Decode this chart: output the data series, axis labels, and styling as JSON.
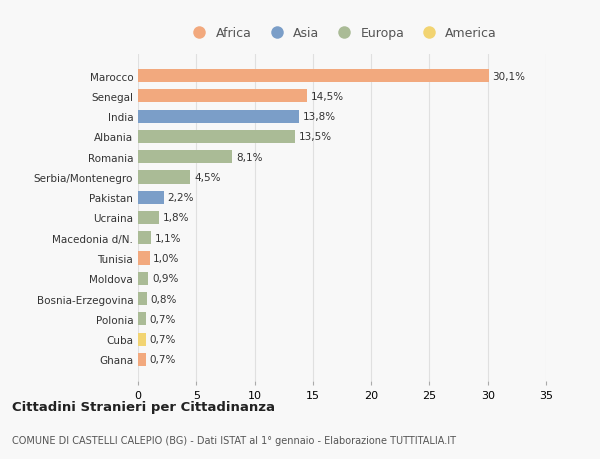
{
  "countries": [
    "Marocco",
    "Senegal",
    "India",
    "Albania",
    "Romania",
    "Serbia/Montenegro",
    "Pakistan",
    "Ucraina",
    "Macedonia d/N.",
    "Tunisia",
    "Moldova",
    "Bosnia-Erzegovina",
    "Polonia",
    "Cuba",
    "Ghana"
  ],
  "values": [
    30.1,
    14.5,
    13.8,
    13.5,
    8.1,
    4.5,
    2.2,
    1.8,
    1.1,
    1.0,
    0.9,
    0.8,
    0.7,
    0.7,
    0.7
  ],
  "labels": [
    "30,1%",
    "14,5%",
    "13,8%",
    "13,5%",
    "8,1%",
    "4,5%",
    "2,2%",
    "1,8%",
    "1,1%",
    "1,0%",
    "0,9%",
    "0,8%",
    "0,7%",
    "0,7%",
    "0,7%"
  ],
  "continents": [
    "Africa",
    "Africa",
    "Asia",
    "Europa",
    "Europa",
    "Europa",
    "Asia",
    "Europa",
    "Europa",
    "Africa",
    "Europa",
    "Europa",
    "Europa",
    "America",
    "Africa"
  ],
  "colors": {
    "Africa": "#F2A97E",
    "Asia": "#7B9EC8",
    "Europa": "#AABB96",
    "America": "#F2D472"
  },
  "legend_order": [
    "Africa",
    "Asia",
    "Europa",
    "America"
  ],
  "title": "Cittadini Stranieri per Cittadinanza",
  "subtitle": "COMUNE DI CASTELLI CALEPIO (BG) - Dati ISTAT al 1° gennaio - Elaborazione TUTTITALIA.IT",
  "xlim": [
    0,
    35
  ],
  "xticks": [
    0,
    5,
    10,
    15,
    20,
    25,
    30,
    35
  ],
  "background_color": "#f8f8f8",
  "grid_color": "#e0e0e0"
}
